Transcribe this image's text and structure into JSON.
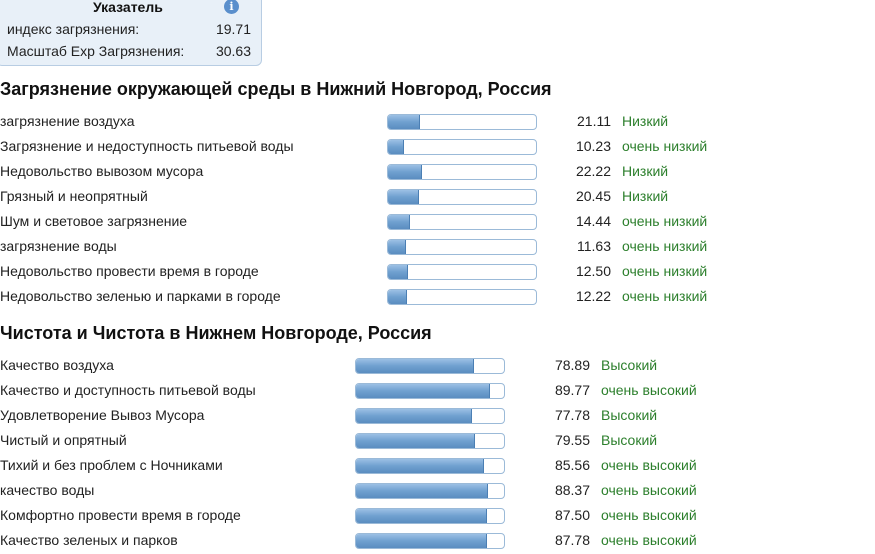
{
  "index": {
    "title": "Указатель",
    "rows": [
      {
        "label": "индекс загрязнения:",
        "value": "19.71"
      },
      {
        "label": "Масштаб Exp Загрязнения:",
        "value": "30.63"
      }
    ]
  },
  "pollution": {
    "heading": "Загрязнение окружающей среды в Нижний Новгород, Россия",
    "items": [
      {
        "label": "загрязнение воздуха",
        "value": "21.11",
        "level": "Низкий",
        "fill": 0.2111
      },
      {
        "label": "Загрязнение и недоступность питьевой воды",
        "value": "10.23",
        "level": "очень низкий",
        "fill": 0.1023
      },
      {
        "label": "Недовольство вывозом мусора",
        "value": "22.22",
        "level": "Низкий",
        "fill": 0.2222
      },
      {
        "label": "Грязный и неопрятный",
        "value": "20.45",
        "level": "Низкий",
        "fill": 0.2045
      },
      {
        "label": "Шум и световое загрязнение",
        "value": "14.44",
        "level": "очень низкий",
        "fill": 0.1444
      },
      {
        "label": "загрязнение воды",
        "value": "11.63",
        "level": "очень низкий",
        "fill": 0.1163
      },
      {
        "label": "Недовольство провести время в городе",
        "value": "12.50",
        "level": "очень низкий",
        "fill": 0.125
      },
      {
        "label": "Недовольство зеленью и парками в городе",
        "value": "12.22",
        "level": "очень низкий",
        "fill": 0.1222
      }
    ]
  },
  "purity": {
    "heading": "Чистота и Чистота в Нижнем Новгороде, Россия",
    "items": [
      {
        "label": "Качество воздуха",
        "value": "78.89",
        "level": "Высокий",
        "fill": 0.7889
      },
      {
        "label": "Качество и доступность питьевой воды",
        "value": "89.77",
        "level": "очень высокий",
        "fill": 0.8977
      },
      {
        "label": "Удовлетворение Вывоз Мусора",
        "value": "77.78",
        "level": "Высокий",
        "fill": 0.7778
      },
      {
        "label": "Чистый и опрятный",
        "value": "79.55",
        "level": "Высокий",
        "fill": 0.7955
      },
      {
        "label": "Тихий и без проблем с Ночниками",
        "value": "85.56",
        "level": "очень высокий",
        "fill": 0.8556
      },
      {
        "label": "качество воды",
        "value": "88.37",
        "level": "очень высокий",
        "fill": 0.8837
      },
      {
        "label": "Комфортно провести время в городе",
        "value": "87.50",
        "level": "очень высокий",
        "fill": 0.875
      },
      {
        "label": "Качество зеленых и парков",
        "value": "87.78",
        "level": "очень высокий",
        "fill": 0.8778
      }
    ]
  },
  "colors": {
    "level_text": "#2c7f2c",
    "bar_fill": "#6fa0cf",
    "bar_border": "#9bbad8",
    "index_box_bg": "#e8f0f8"
  },
  "icons": {
    "info": "info-icon"
  }
}
